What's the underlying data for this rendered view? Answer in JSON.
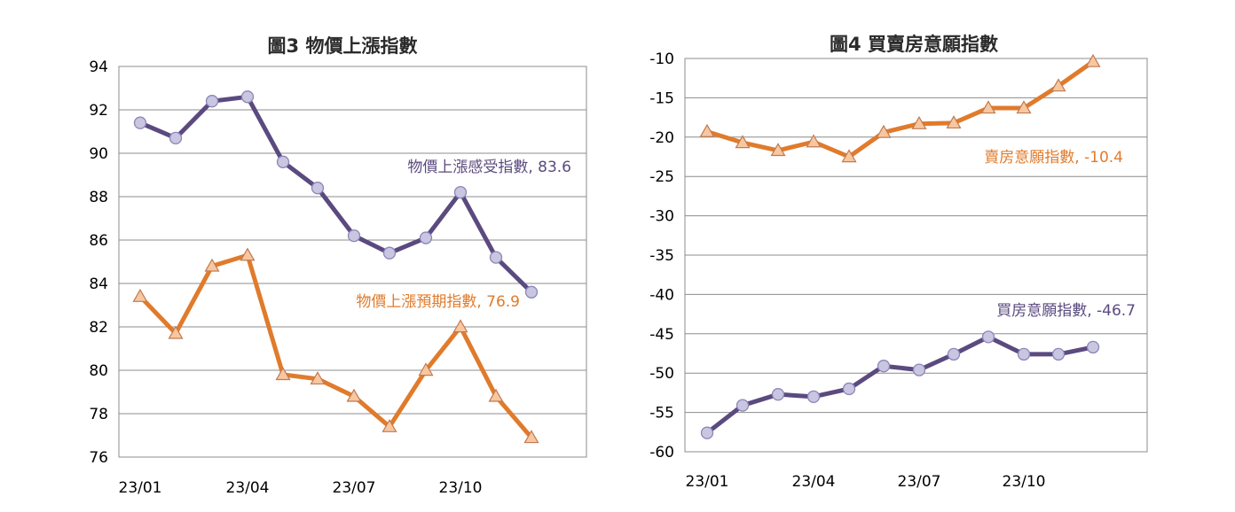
{
  "chart_data": [
    {
      "type": "line",
      "title": "圖3 物價上漲指數",
      "x_ticks": [
        "23/01",
        "23/04",
        "23/07",
        "23/10"
      ],
      "ylim": [
        76,
        94
      ],
      "y_ticks": [
        "76",
        "78",
        "80",
        "82",
        "84",
        "86",
        "88",
        "90",
        "92",
        "94"
      ],
      "grid": true,
      "legend": "none",
      "series": [
        {
          "name": "物價上漲感受指數",
          "annotation": "物價上漲感受指數, 83.6",
          "color": "#5b4a7f",
          "marker": "circle",
          "values": [
            91.4,
            90.7,
            92.4,
            92.6,
            89.6,
            88.4,
            86.2,
            85.4,
            86.1,
            88.2,
            85.2,
            83.6
          ]
        },
        {
          "name": "物價上漲預期指數",
          "annotation": "物價上漲預期指數, 76.9",
          "color": "#e07b2c",
          "marker": "triangle",
          "values": [
            83.4,
            81.7,
            84.8,
            85.3,
            79.8,
            79.6,
            78.8,
            77.4,
            80.0,
            82.0,
            78.8,
            76.9
          ]
        }
      ]
    },
    {
      "type": "line",
      "title": "圖4 買賣房意願指數",
      "x_ticks": [
        "23/01",
        "23/04",
        "23/07",
        "23/10"
      ],
      "ylim": [
        -60,
        -10
      ],
      "y_ticks": [
        "-60",
        "-55",
        "-50",
        "-45",
        "-40",
        "-35",
        "-30",
        "-25",
        "-20",
        "-15",
        "-10"
      ],
      "grid": true,
      "legend": "none",
      "series": [
        {
          "name": "賣房意願指數",
          "annotation": "賣房意願指數, -10.4",
          "color": "#e07b2c",
          "marker": "triangle",
          "values": [
            -19.3,
            -20.7,
            -21.7,
            -20.6,
            -22.5,
            -19.4,
            -18.3,
            -18.2,
            -16.3,
            -16.3,
            -13.5,
            -10.4
          ]
        },
        {
          "name": "買房意願指數",
          "annotation": "買房意願指數, -46.7",
          "color": "#5b4a7f",
          "marker": "circle",
          "values": [
            -57.6,
            -54.1,
            -52.7,
            -53.0,
            -52.0,
            -49.1,
            -49.6,
            -47.6,
            -45.4,
            -47.6,
            -47.6,
            -46.7
          ]
        }
      ]
    }
  ]
}
